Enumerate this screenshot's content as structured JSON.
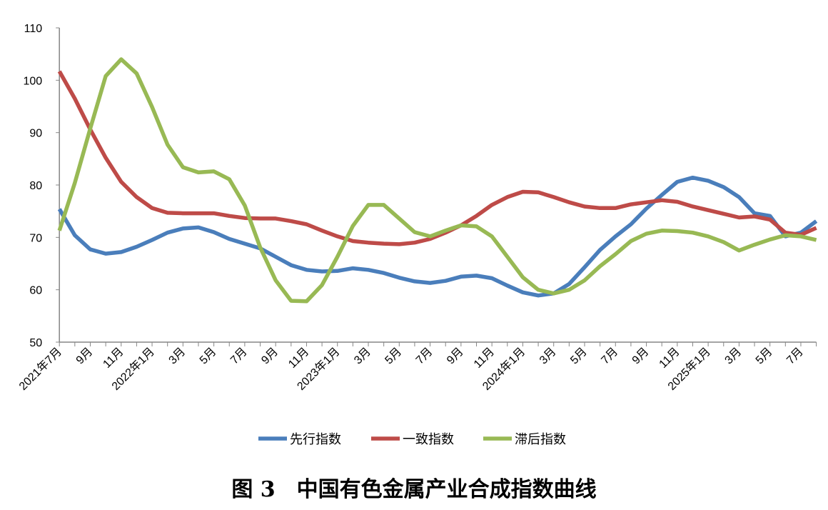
{
  "chart_data": {
    "type": "line",
    "title": "",
    "caption": "图 3　中国有色金属产业合成指数曲线",
    "xlabel": "",
    "ylabel": "",
    "ylim": [
      50,
      110
    ],
    "yticks": [
      50,
      60,
      70,
      80,
      90,
      100,
      110
    ],
    "grid": false,
    "legend_position": "bottom",
    "x_tick_labels": [
      "2021年7月",
      "9月",
      "11月",
      "2022年1月",
      "3月",
      "5月",
      "7月",
      "9月",
      "11月",
      "2023年1月",
      "3月",
      "5月",
      "7月",
      "9月",
      "11月",
      "2024年1月",
      "3月",
      "5月",
      "7月",
      "9月",
      "11月",
      "2025年1月",
      "3月",
      "5月",
      "7月"
    ],
    "x": [
      "2021-07",
      "2021-08",
      "2021-09",
      "2021-10",
      "2021-11",
      "2021-12",
      "2022-01",
      "2022-02",
      "2022-03",
      "2022-04",
      "2022-05",
      "2022-06",
      "2022-07",
      "2022-08",
      "2022-09",
      "2022-10",
      "2022-11",
      "2022-12",
      "2023-01",
      "2023-02",
      "2023-03",
      "2023-04",
      "2023-05",
      "2023-06",
      "2023-07",
      "2023-08",
      "2023-09",
      "2023-10",
      "2023-11",
      "2023-12",
      "2024-01",
      "2024-02",
      "2024-03",
      "2024-04",
      "2024-05",
      "2024-06",
      "2024-07",
      "2024-08",
      "2024-09",
      "2024-10",
      "2024-11",
      "2024-12",
      "2025-01",
      "2025-02",
      "2025-03",
      "2025-04",
      "2025-05",
      "2025-06",
      "2025-07",
      "2025-08"
    ],
    "series": [
      {
        "name": "先行指数",
        "color": "#4a7ebb",
        "values": [
          75.4,
          70.4,
          67.7,
          66.9,
          67.2,
          68.2,
          69.5,
          70.9,
          71.7,
          71.9,
          71.0,
          69.7,
          68.8,
          67.9,
          66.3,
          64.7,
          63.8,
          63.5,
          63.6,
          64.1,
          63.8,
          63.2,
          62.3,
          61.6,
          61.3,
          61.7,
          62.5,
          62.7,
          62.2,
          60.8,
          59.5,
          58.9,
          59.3,
          61.1,
          64.3,
          67.6,
          70.2,
          72.5,
          75.5,
          78.1,
          80.6,
          81.4,
          80.8,
          79.6,
          77.7,
          74.6,
          74.1,
          70.2,
          70.9,
          73.1
        ]
      },
      {
        "name": "一致指数",
        "color": "#be4b48",
        "values": [
          101.7,
          96.5,
          90.6,
          85.2,
          80.6,
          77.7,
          75.6,
          74.7,
          74.6,
          74.6,
          74.6,
          74.1,
          73.7,
          73.6,
          73.6,
          73.1,
          72.5,
          71.3,
          70.2,
          69.3,
          69.0,
          68.8,
          68.7,
          69.0,
          69.7,
          70.9,
          72.3,
          74.1,
          76.2,
          77.7,
          78.7,
          78.6,
          77.7,
          76.7,
          75.9,
          75.6,
          75.6,
          76.3,
          76.7,
          77.1,
          76.8,
          75.9,
          75.2,
          74.5,
          73.8,
          74.0,
          73.4,
          70.9,
          70.5,
          71.8
        ]
      },
      {
        "name": "滞后指数",
        "color": "#98b954",
        "values": [
          71.3,
          80.4,
          90.8,
          100.8,
          104.0,
          101.3,
          94.9,
          87.7,
          83.4,
          82.4,
          82.6,
          81.1,
          76.1,
          68.1,
          61.8,
          57.9,
          57.8,
          60.9,
          66.3,
          72.2,
          76.2,
          76.2,
          73.6,
          71.0,
          70.2,
          71.3,
          72.3,
          72.1,
          70.2,
          66.3,
          62.4,
          60.0,
          59.3,
          60.0,
          61.8,
          64.5,
          66.8,
          69.3,
          70.7,
          71.3,
          71.2,
          70.9,
          70.2,
          69.1,
          67.5,
          68.6,
          69.6,
          70.4,
          70.2,
          69.5
        ]
      }
    ]
  }
}
